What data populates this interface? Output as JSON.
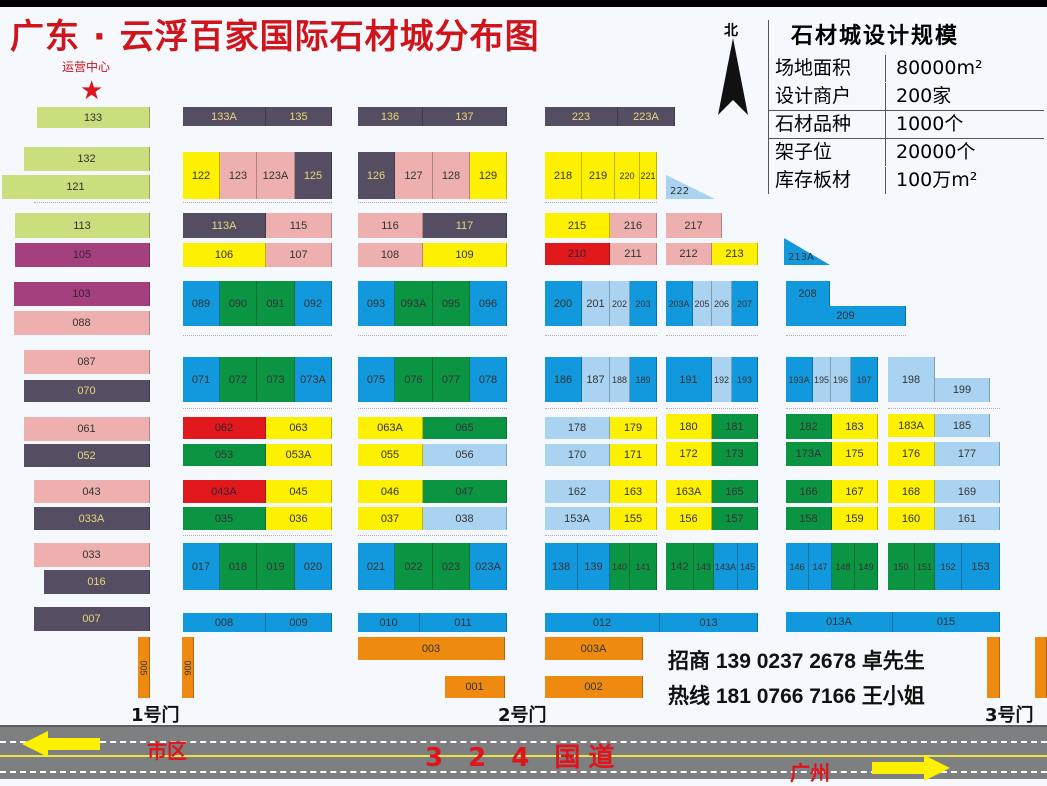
{
  "title": "广东 · 云浮百家国际石材城分布图",
  "operations_center": "运营中心",
  "north_label": "北",
  "legend": {
    "title": "石材城设计规模",
    "rows": [
      {
        "key": "场地面积",
        "value": "80000m²"
      },
      {
        "key": "设计商户",
        "value": "200家"
      },
      {
        "key": "石材品种",
        "value": "1000个"
      },
      {
        "key": "架子位",
        "value": "20000个"
      },
      {
        "key": "库存板材",
        "value": "100万m²"
      }
    ]
  },
  "contact": {
    "line1": "招商 139 0237 2678 卓先生",
    "line2": "热线 181 0766 7166 王小姐"
  },
  "gates": [
    "1号门",
    "2号门",
    "3号门"
  ],
  "road": {
    "name": "3 2 4 国道",
    "left_dest": "市区",
    "right_dest": "广州"
  },
  "palette": {
    "blue": "#1198dd",
    "lightblue": "#a9d3f1",
    "green": "#0b9442",
    "yellow": "#fdf000",
    "pink": "#eeb0ae",
    "dark": "#554d62",
    "lime": "#c9df7d",
    "purple": "#a5407f",
    "red": "#e2191c",
    "orange": "#ee8a10"
  },
  "lots": [
    {
      "id": "133",
      "color": "lime"
    },
    {
      "id": "132",
      "color": "lime"
    },
    {
      "id": "121",
      "color": "lime"
    },
    {
      "id": "113",
      "color": "lime"
    },
    {
      "id": "105",
      "color": "purple"
    },
    {
      "id": "103",
      "color": "purple"
    },
    {
      "id": "088",
      "color": "pink"
    },
    {
      "id": "087",
      "color": "pink"
    },
    {
      "id": "070",
      "color": "dark"
    },
    {
      "id": "061",
      "color": "pink"
    },
    {
      "id": "052",
      "color": "dark"
    },
    {
      "id": "043",
      "color": "pink"
    },
    {
      "id": "033A",
      "color": "dark"
    },
    {
      "id": "033",
      "color": "pink"
    },
    {
      "id": "016",
      "color": "dark"
    },
    {
      "id": "007",
      "color": "dark"
    },
    {
      "id": "133A",
      "color": "dark"
    },
    {
      "id": "135",
      "color": "dark"
    },
    {
      "id": "122",
      "color": "yellow"
    },
    {
      "id": "123",
      "color": "pink"
    },
    {
      "id": "123A",
      "color": "pink"
    },
    {
      "id": "125",
      "color": "dark"
    },
    {
      "id": "113A",
      "color": "dark"
    },
    {
      "id": "115",
      "color": "pink"
    },
    {
      "id": "106",
      "color": "yellow"
    },
    {
      "id": "107",
      "color": "pink"
    },
    {
      "id": "089",
      "color": "blue"
    },
    {
      "id": "090",
      "color": "green"
    },
    {
      "id": "091",
      "color": "green"
    },
    {
      "id": "092",
      "color": "blue"
    },
    {
      "id": "071",
      "color": "blue"
    },
    {
      "id": "072",
      "color": "green"
    },
    {
      "id": "073",
      "color": "green"
    },
    {
      "id": "073A",
      "color": "blue"
    },
    {
      "id": "062",
      "color": "red"
    },
    {
      "id": "063",
      "color": "yellow"
    },
    {
      "id": "053",
      "color": "green"
    },
    {
      "id": "053A",
      "color": "yellow"
    },
    {
      "id": "043A",
      "color": "red"
    },
    {
      "id": "045",
      "color": "yellow"
    },
    {
      "id": "035",
      "color": "green"
    },
    {
      "id": "036",
      "color": "yellow"
    },
    {
      "id": "017",
      "color": "blue"
    },
    {
      "id": "018",
      "color": "green"
    },
    {
      "id": "019",
      "color": "green"
    },
    {
      "id": "020",
      "color": "blue"
    },
    {
      "id": "008",
      "color": "blue"
    },
    {
      "id": "009",
      "color": "blue"
    },
    {
      "id": "136",
      "color": "dark"
    },
    {
      "id": "137",
      "color": "dark"
    },
    {
      "id": "126",
      "color": "dark"
    },
    {
      "id": "127",
      "color": "pink"
    },
    {
      "id": "128",
      "color": "pink"
    },
    {
      "id": "129",
      "color": "yellow"
    },
    {
      "id": "116",
      "color": "pink"
    },
    {
      "id": "117",
      "color": "dark"
    },
    {
      "id": "108",
      "color": "pink"
    },
    {
      "id": "109",
      "color": "yellow"
    },
    {
      "id": "093",
      "color": "blue"
    },
    {
      "id": "093A",
      "color": "green"
    },
    {
      "id": "095",
      "color": "green"
    },
    {
      "id": "096",
      "color": "blue"
    },
    {
      "id": "075",
      "color": "blue"
    },
    {
      "id": "076",
      "color": "green"
    },
    {
      "id": "077",
      "color": "green"
    },
    {
      "id": "078",
      "color": "blue"
    },
    {
      "id": "063A",
      "color": "yellow"
    },
    {
      "id": "065",
      "color": "green"
    },
    {
      "id": "055",
      "color": "yellow"
    },
    {
      "id": "056",
      "color": "lightblue"
    },
    {
      "id": "046",
      "color": "yellow"
    },
    {
      "id": "047",
      "color": "green"
    },
    {
      "id": "037",
      "color": "yellow"
    },
    {
      "id": "038",
      "color": "lightblue"
    },
    {
      "id": "021",
      "color": "blue"
    },
    {
      "id": "022",
      "color": "green"
    },
    {
      "id": "023",
      "color": "green"
    },
    {
      "id": "023A",
      "color": "blue"
    },
    {
      "id": "010",
      "color": "blue"
    },
    {
      "id": "011",
      "color": "blue"
    },
    {
      "id": "003",
      "color": "orange"
    },
    {
      "id": "001",
      "color": "orange"
    },
    {
      "id": "223",
      "color": "dark"
    },
    {
      "id": "223A",
      "color": "dark"
    },
    {
      "id": "218",
      "color": "yellow"
    },
    {
      "id": "219",
      "color": "yellow"
    },
    {
      "id": "220",
      "color": "yellow"
    },
    {
      "id": "221",
      "color": "yellow"
    },
    {
      "id": "215",
      "color": "yellow"
    },
    {
      "id": "216",
      "color": "pink"
    },
    {
      "id": "210",
      "color": "red"
    },
    {
      "id": "211",
      "color": "pink"
    },
    {
      "id": "200",
      "color": "blue"
    },
    {
      "id": "201",
      "color": "lightblue"
    },
    {
      "id": "202",
      "color": "lightblue"
    },
    {
      "id": "203",
      "color": "blue"
    },
    {
      "id": "186",
      "color": "blue"
    },
    {
      "id": "187",
      "color": "lightblue"
    },
    {
      "id": "188",
      "color": "lightblue"
    },
    {
      "id": "189",
      "color": "blue"
    },
    {
      "id": "178",
      "color": "lightblue"
    },
    {
      "id": "179",
      "color": "yellow"
    },
    {
      "id": "170",
      "color": "lightblue"
    },
    {
      "id": "171",
      "color": "yellow"
    },
    {
      "id": "162",
      "color": "lightblue"
    },
    {
      "id": "163",
      "color": "yellow"
    },
    {
      "id": "153A",
      "color": "lightblue"
    },
    {
      "id": "155",
      "color": "yellow"
    },
    {
      "id": "138",
      "color": "blue"
    },
    {
      "id": "139",
      "color": "blue"
    },
    {
      "id": "140",
      "color": "green"
    },
    {
      "id": "141",
      "color": "green"
    },
    {
      "id": "012",
      "color": "blue"
    },
    {
      "id": "013",
      "color": "blue"
    },
    {
      "id": "003A",
      "color": "orange"
    },
    {
      "id": "002",
      "color": "orange"
    },
    {
      "id": "217",
      "color": "pink"
    },
    {
      "id": "212",
      "color": "pink"
    },
    {
      "id": "213",
      "color": "yellow"
    },
    {
      "id": "203A",
      "color": "blue"
    },
    {
      "id": "205",
      "color": "lightblue"
    },
    {
      "id": "206",
      "color": "lightblue"
    },
    {
      "id": "207",
      "color": "blue"
    },
    {
      "id": "191",
      "color": "blue"
    },
    {
      "id": "192",
      "color": "lightblue"
    },
    {
      "id": "193",
      "color": "blue"
    },
    {
      "id": "180",
      "color": "yellow"
    },
    {
      "id": "181",
      "color": "green"
    },
    {
      "id": "172",
      "color": "yellow"
    },
    {
      "id": "173",
      "color": "green"
    },
    {
      "id": "163A",
      "color": "yellow"
    },
    {
      "id": "165",
      "color": "green"
    },
    {
      "id": "156",
      "color": "yellow"
    },
    {
      "id": "157",
      "color": "green"
    },
    {
      "id": "142",
      "color": "green"
    },
    {
      "id": "143",
      "color": "green"
    },
    {
      "id": "143A",
      "color": "blue"
    },
    {
      "id": "145",
      "color": "blue"
    },
    {
      "id": "208",
      "color": "blue"
    },
    {
      "id": "209",
      "color": "blue"
    },
    {
      "id": "193A",
      "color": "blue"
    },
    {
      "id": "195",
      "color": "lightblue"
    },
    {
      "id": "196",
      "color": "lightblue"
    },
    {
      "id": "197",
      "color": "blue"
    },
    {
      "id": "182",
      "color": "green"
    },
    {
      "id": "183",
      "color": "yellow"
    },
    {
      "id": "173A",
      "color": "green"
    },
    {
      "id": "175",
      "color": "yellow"
    },
    {
      "id": "166",
      "color": "green"
    },
    {
      "id": "167",
      "color": "yellow"
    },
    {
      "id": "158",
      "color": "green"
    },
    {
      "id": "159",
      "color": "yellow"
    },
    {
      "id": "146",
      "color": "blue"
    },
    {
      "id": "147",
      "color": "blue"
    },
    {
      "id": "148",
      "color": "green"
    },
    {
      "id": "149",
      "color": "green"
    },
    {
      "id": "013A",
      "color": "blue"
    },
    {
      "id": "015",
      "color": "blue"
    },
    {
      "id": "198",
      "color": "lightblue"
    },
    {
      "id": "199",
      "color": "lightblue"
    },
    {
      "id": "183A",
      "color": "yellow"
    },
    {
      "id": "185",
      "color": "lightblue"
    },
    {
      "id": "176",
      "color": "yellow"
    },
    {
      "id": "177",
      "color": "lightblue"
    },
    {
      "id": "168",
      "color": "yellow"
    },
    {
      "id": "169",
      "color": "lightblue"
    },
    {
      "id": "160",
      "color": "yellow"
    },
    {
      "id": "161",
      "color": "lightblue"
    },
    {
      "id": "150",
      "color": "green"
    },
    {
      "id": "151",
      "color": "green"
    },
    {
      "id": "152",
      "color": "blue"
    },
    {
      "id": "153",
      "color": "blue"
    },
    {
      "id": "005",
      "color": "orange"
    },
    {
      "id": "006",
      "color": "orange"
    }
  ],
  "triangle_lots": [
    {
      "id": "222",
      "color": "lightblue"
    },
    {
      "id": "213A",
      "color": "blue"
    }
  ],
  "extra_bars": [
    {
      "color": "orange"
    },
    {
      "color": "orange"
    }
  ]
}
